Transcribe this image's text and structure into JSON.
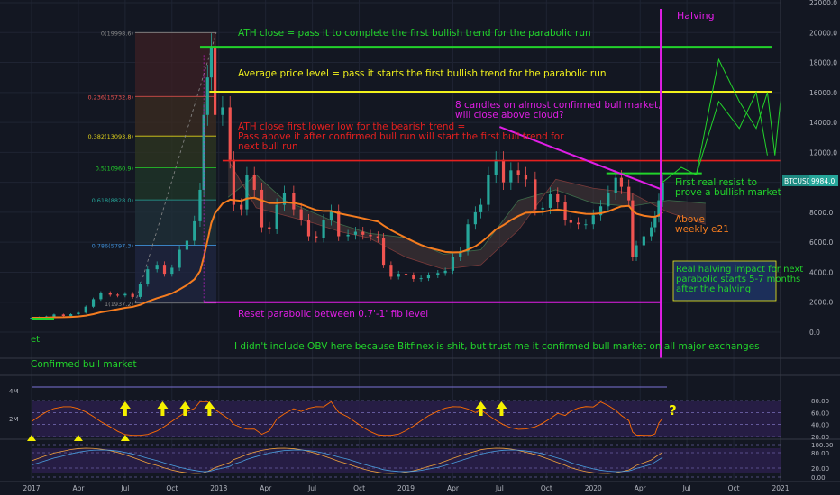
{
  "colors": {
    "bg": "#131722",
    "up": "#26a69a",
    "down": "#ef5350",
    "ema": "#f57c1f",
    "green": "#22d32b",
    "yellow": "#f2f21c",
    "red": "#e5201f",
    "magenta": "#e11ee6",
    "indicator_bg": "#2a1f4a",
    "rsi_line": "#ff6d00",
    "obv_blue": "#7b73d6",
    "arrow_yellow": "#f5f000"
  },
  "chart_data": {
    "type": "candlestick",
    "symbol": "BTCUSD",
    "last_price": 9984.0,
    "y_axis": {
      "ticks": [
        0,
        2000,
        4000,
        6000,
        8000,
        10000,
        12000,
        14000,
        16000,
        18000,
        20000,
        22000
      ],
      "labels": [
        "0.0",
        "2000.0",
        "4000.0",
        "6000.0",
        "8000.0",
        "10000.0",
        "12000.0",
        "14000.0",
        "16000.0",
        "18000.0",
        "20000.0",
        "22000.0"
      ]
    },
    "x_axis": {
      "labels": [
        "2017",
        "Apr",
        "Jul",
        "Oct",
        "2018",
        "Apr",
        "Jul",
        "Oct",
        "2019",
        "Apr",
        "Jul",
        "Oct",
        "2020",
        "Apr",
        "Jul",
        "Oct",
        "2021"
      ]
    },
    "fib_levels": [
      {
        "label": "0(19998.6)",
        "price": 19998.6,
        "color": "#8a8a8a"
      },
      {
        "label": "0.236(15732.8)",
        "price": 15732.8,
        "color": "#ef5350"
      },
      {
        "label": "0.382(13093.8)",
        "price": 13093.8,
        "color": "#e0d21a"
      },
      {
        "label": "0.5(10960.9)",
        "price": 10960.9,
        "color": "#22d32b"
      },
      {
        "label": "0.618(8828.0)",
        "price": 8828.0,
        "color": "#26a69a"
      },
      {
        "label": "0.786(5797.3)",
        "price": 5797.3,
        "color": "#3f8fd8"
      },
      {
        "label": "1(1937.2)",
        "price": 1937.2,
        "color": "#8a8a8a"
      }
    ],
    "weekly_close": [
      [
        2017.0,
        960
      ],
      [
        2017.04,
        1000
      ],
      [
        2017.08,
        1050
      ],
      [
        2017.12,
        1180
      ],
      [
        2017.17,
        1080
      ],
      [
        2017.21,
        1200
      ],
      [
        2017.25,
        1300
      ],
      [
        2017.29,
        1700
      ],
      [
        2017.33,
        2200
      ],
      [
        2017.37,
        2600
      ],
      [
        2017.42,
        2500
      ],
      [
        2017.46,
        2450
      ],
      [
        2017.5,
        2550
      ],
      [
        2017.54,
        2350
      ],
      [
        2017.58,
        3200
      ],
      [
        2017.62,
        4200
      ],
      [
        2017.67,
        4500
      ],
      [
        2017.71,
        3900
      ],
      [
        2017.75,
        4300
      ],
      [
        2017.79,
        5500
      ],
      [
        2017.83,
        6100
      ],
      [
        2017.87,
        7400
      ],
      [
        2017.9,
        9500
      ],
      [
        2017.92,
        14500
      ],
      [
        2017.94,
        17000
      ],
      [
        2017.96,
        19000
      ],
      [
        2017.98,
        14500
      ],
      [
        2018.02,
        15000
      ],
      [
        2018.06,
        11500
      ],
      [
        2018.08,
        8500
      ],
      [
        2018.12,
        8200
      ],
      [
        2018.15,
        10500
      ],
      [
        2018.19,
        9500
      ],
      [
        2018.23,
        7000
      ],
      [
        2018.27,
        6900
      ],
      [
        2018.31,
        8500
      ],
      [
        2018.35,
        9300
      ],
      [
        2018.4,
        8200
      ],
      [
        2018.44,
        7500
      ],
      [
        2018.48,
        6400
      ],
      [
        2018.52,
        6300
      ],
      [
        2018.56,
        7500
      ],
      [
        2018.6,
        8100
      ],
      [
        2018.64,
        6400
      ],
      [
        2018.69,
        6500
      ],
      [
        2018.73,
        6700
      ],
      [
        2018.77,
        6500
      ],
      [
        2018.81,
        6400
      ],
      [
        2018.85,
        6300
      ],
      [
        2018.88,
        4500
      ],
      [
        2018.92,
        3700
      ],
      [
        2018.96,
        3900
      ],
      [
        2019.0,
        3800
      ],
      [
        2019.04,
        3550
      ],
      [
        2019.08,
        3600
      ],
      [
        2019.12,
        3800
      ],
      [
        2019.17,
        3950
      ],
      [
        2019.21,
        4100
      ],
      [
        2019.25,
        5000
      ],
      [
        2019.29,
        5400
      ],
      [
        2019.33,
        7200
      ],
      [
        2019.37,
        8000
      ],
      [
        2019.4,
        8500
      ],
      [
        2019.44,
        10500
      ],
      [
        2019.48,
        11500
      ],
      [
        2019.52,
        10000
      ],
      [
        2019.56,
        10800
      ],
      [
        2019.6,
        10500
      ],
      [
        2019.64,
        10200
      ],
      [
        2019.69,
        8200
      ],
      [
        2019.73,
        8300
      ],
      [
        2019.77,
        9200
      ],
      [
        2019.81,
        8700
      ],
      [
        2019.85,
        7500
      ],
      [
        2019.88,
        7300
      ],
      [
        2019.92,
        7200
      ],
      [
        2019.96,
        7200
      ],
      [
        2020.0,
        7800
      ],
      [
        2020.04,
        8400
      ],
      [
        2020.08,
        9300
      ],
      [
        2020.12,
        10300
      ],
      [
        2020.15,
        9700
      ],
      [
        2020.19,
        8800
      ],
      [
        2020.21,
        5000
      ],
      [
        2020.23,
        5800
      ],
      [
        2020.27,
        6400
      ],
      [
        2020.31,
        7000
      ],
      [
        2020.33,
        7700
      ],
      [
        2020.35,
        8800
      ],
      [
        2020.37,
        9984
      ]
    ],
    "overlays": {
      "green_top_line": 19050,
      "yellow_line": 16050,
      "red_line": 11450,
      "resist_line": 10600,
      "halving_x": "2020.36"
    },
    "indicator_rsi": {
      "levels": [
        80,
        60,
        40,
        20
      ],
      "labels": [
        "80.00",
        "60.00",
        "40.00",
        "20.00"
      ]
    },
    "indicator_obv": {
      "labels": [
        "4M",
        "2M"
      ]
    },
    "indicator_stoch": {
      "labels": [
        "100.00",
        "80.00",
        "20.00",
        "0.00"
      ]
    }
  },
  "annotations": {
    "ath_close": "ATH close = pass it to complete the first bullish trend for the parabolic run",
    "avg_price": "Average price level = pass it starts the first bullish trend for the parabolic run",
    "ath_lower_low": "ATH close first lower low for the bearish trend =",
    "ath_lower_low_2": "Pass above it after confirmed bull run will start the first bull trend for",
    "ath_lower_low_3": "next bull run",
    "candles": "8 candles on almost confirmed bull market,",
    "candles_2": "will close above cloud?",
    "halving": "Halving",
    "first_resist": "First real resist to",
    "first_resist_2": "prove a bullish market",
    "above_e21": "Above",
    "above_e21_2": "weekly e21",
    "halving_impact": "Real halving impact for next",
    "halving_impact_2": "parabolic starts 5-7 months",
    "halving_impact_3": "after the halving",
    "reset_parabolic": "Reset parabolic between 0.7'-1' fib level",
    "obv_note": "I didn't include OBV here because Bitfinex is shit, but trust me it confirmed bull market on all major exchanges",
    "confirmed_bull": "Confirmed bull market",
    "et": "et",
    "question": "?",
    "price_tag_symbol": "BTCUSD",
    "price_tag_value": "9984.0"
  }
}
